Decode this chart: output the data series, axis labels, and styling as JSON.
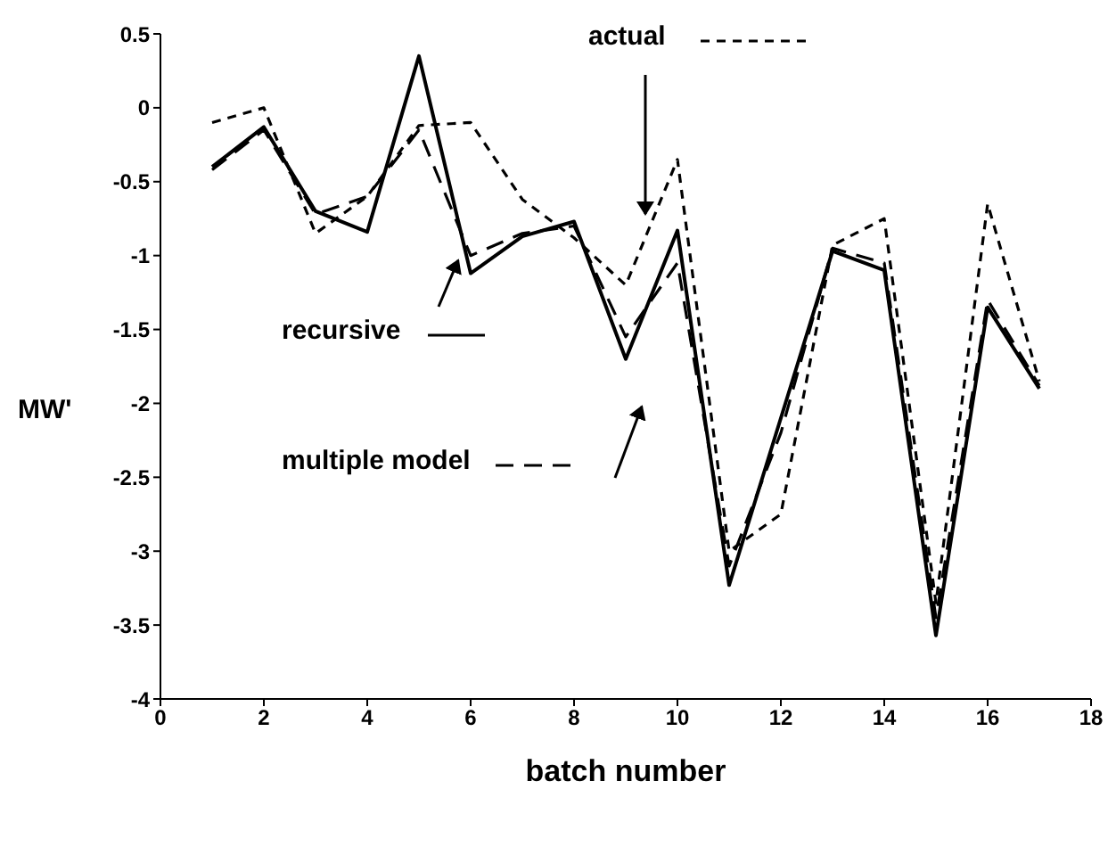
{
  "chart_data": {
    "type": "line",
    "xlabel": "batch number",
    "ylabel": "MW'",
    "x": [
      1,
      2,
      3,
      4,
      5,
      6,
      7,
      8,
      9,
      10,
      11,
      12,
      13,
      14,
      15,
      16,
      17
    ],
    "series": [
      {
        "name": "actual",
        "color": "#000000",
        "line_style": "dotted",
        "values": [
          -0.1,
          0,
          -0.85,
          -0.6,
          -0.12,
          -0.1,
          -0.62,
          -0.88,
          -1.2,
          -0.35,
          -3.0,
          -2.75,
          -0.93,
          -0.75,
          -3.35,
          -0.65,
          -1.85
        ]
      },
      {
        "name": "recursive",
        "color": "#000000",
        "line_style": "solid",
        "values": [
          -0.4,
          -0.13,
          -0.7,
          -0.84,
          0.35,
          -1.12,
          -0.87,
          -0.77,
          -1.7,
          -0.83,
          -3.23,
          -2.1,
          -0.97,
          -1.1,
          -3.57,
          -1.35,
          -1.9
        ]
      },
      {
        "name": "multiple model",
        "color": "#000000",
        "line_style": "dashed",
        "values": [
          -0.42,
          -0.15,
          -0.72,
          -0.6,
          -0.15,
          -1.0,
          -0.85,
          -0.8,
          -1.55,
          -1.05,
          -3.1,
          -2.2,
          -0.95,
          -1.05,
          -3.45,
          -1.3,
          -1.88
        ]
      }
    ],
    "xlim": [
      0,
      18
    ],
    "xticks": [
      0,
      2,
      4,
      6,
      8,
      10,
      12,
      14,
      16,
      18
    ],
    "ylim": [
      -4,
      0.5
    ],
    "yticks": [
      -4,
      -3.5,
      -3,
      -2.5,
      -2,
      -1.5,
      -1,
      -0.5,
      0,
      0.5
    ],
    "grid": false,
    "marker": "none",
    "legend": "top"
  }
}
